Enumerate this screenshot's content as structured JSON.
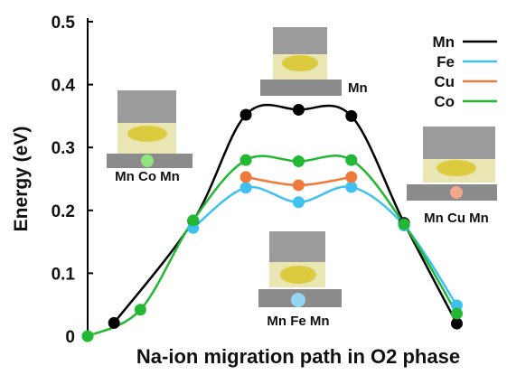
{
  "chart_data": {
    "type": "line",
    "x_label": "Na-ion migration path in O2 phase",
    "y_label": "Energy (eV)",
    "xlim": [
      0,
      7.9
    ],
    "ylim": [
      0,
      0.5
    ],
    "yticks": [
      0,
      0.1,
      0.2,
      0.3,
      0.4,
      0.5
    ],
    "series": [
      {
        "name": "Mn",
        "color": "#000000",
        "x": [
          0.5,
          2,
          3,
          4,
          5,
          6,
          7
        ],
        "values": [
          0.021,
          0.183,
          0.352,
          0.36,
          0.35,
          0.18,
          0.02
        ]
      },
      {
        "name": "Fe",
        "color": "#3ec0f0",
        "x": [
          2,
          3,
          4,
          5,
          6,
          7
        ],
        "values": [
          0.172,
          0.236,
          0.213,
          0.237,
          0.176,
          0.049
        ]
      },
      {
        "name": "Cu",
        "color": "#f07a3c",
        "x": [
          3,
          4,
          5
        ],
        "values": [
          0.253,
          0.24,
          0.253
        ]
      },
      {
        "name": "Co",
        "color": "#22b833",
        "x": [
          0,
          1,
          2,
          3,
          4,
          5,
          6,
          7
        ],
        "values": [
          0,
          0.042,
          0.184,
          0.28,
          0.278,
          0.28,
          0.178,
          0.036
        ]
      }
    ],
    "annotations": [
      "Mn Co Mn",
      "Mn",
      "Mn Cu Mn",
      "Mn Fe Mn"
    ]
  }
}
